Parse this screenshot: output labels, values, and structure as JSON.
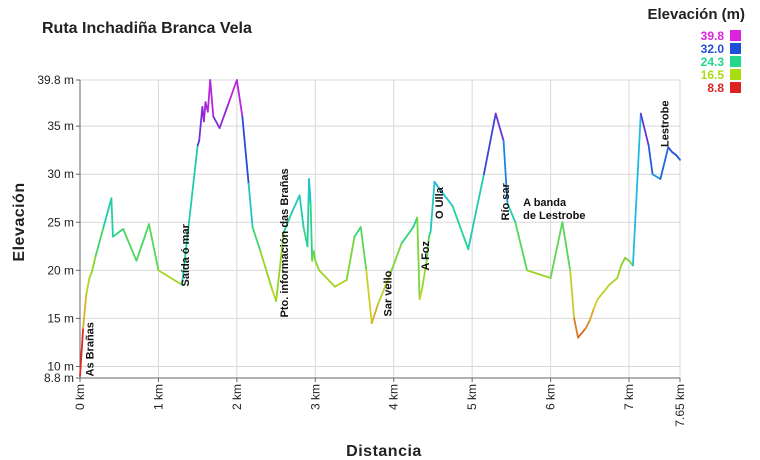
{
  "chart_data": {
    "type": "line",
    "title": "Ruta Inchadiña Branca Vela",
    "xlabel": "Distancia",
    "ylabel": "Elevación",
    "xlim": [
      0,
      7.65
    ],
    "ylim": [
      8.8,
      39.8
    ],
    "x_ticks": [
      {
        "value": 0,
        "label": "0 km"
      },
      {
        "value": 1,
        "label": "1 km"
      },
      {
        "value": 2,
        "label": "2 km"
      },
      {
        "value": 3,
        "label": "3 km"
      },
      {
        "value": 4,
        "label": "4 km"
      },
      {
        "value": 5,
        "label": "5 km"
      },
      {
        "value": 6,
        "label": "6 km"
      },
      {
        "value": 7,
        "label": "7 km"
      },
      {
        "value": 7.65,
        "label": "7.65 km"
      }
    ],
    "y_ticks": [
      {
        "value": 8.8,
        "label": "8.8 m"
      },
      {
        "value": 10,
        "label": "10 m"
      },
      {
        "value": 15,
        "label": "15 m"
      },
      {
        "value": 20,
        "label": "20 m"
      },
      {
        "value": 25,
        "label": "25 m"
      },
      {
        "value": 30,
        "label": "30 m"
      },
      {
        "value": 35,
        "label": "35 m"
      },
      {
        "value": 39.8,
        "label": "39.8 m"
      }
    ],
    "grid": true,
    "legend": {
      "title": "Elevación (m)",
      "placement": "top-right",
      "entries": [
        {
          "label": "39.8",
          "color": "#dd22dd"
        },
        {
          "label": "32.0",
          "color": "#1f4fd6"
        },
        {
          "label": "24.3",
          "color": "#22d68a"
        },
        {
          "label": "16.5",
          "color": "#aadd11"
        },
        {
          "label": "8.8",
          "color": "#dd2222"
        }
      ]
    },
    "series": [
      {
        "x": [
          0,
          0.04,
          0.08,
          0.12,
          0.15,
          0.2,
          0.3,
          0.4,
          0.42,
          0.55,
          0.72,
          0.88,
          1.0,
          1.3,
          1.5,
          1.52,
          1.56,
          1.58,
          1.6,
          1.63,
          1.66,
          1.7,
          1.78,
          1.9,
          2.0,
          2.07,
          2.15,
          2.2,
          2.3,
          2.45,
          2.5,
          2.6,
          2.7,
          2.8,
          2.85,
          2.9,
          2.92,
          2.94,
          2.96,
          2.98,
          3.0,
          3.05,
          3.25,
          3.4,
          3.5,
          3.58,
          3.65,
          3.72,
          3.8,
          3.95,
          4.1,
          4.25,
          4.3,
          4.33,
          4.36,
          4.42,
          4.45,
          4.47,
          4.52,
          4.6,
          4.75,
          4.95,
          5.15,
          5.3,
          5.4,
          5.45,
          5.55,
          5.7,
          6.0,
          6.15,
          6.25,
          6.3,
          6.35,
          6.45,
          6.5,
          6.55,
          6.6,
          6.75,
          6.85,
          6.9,
          6.95,
          7.0,
          7.05,
          7.15,
          7.25,
          7.3,
          7.4,
          7.5,
          7.55,
          7.6,
          7.62,
          7.65
        ],
        "y": [
          9.0,
          14.0,
          17.5,
          19.2,
          19.8,
          21.5,
          24.5,
          27.5,
          23.5,
          24.3,
          21.0,
          24.8,
          20.0,
          18.5,
          33.0,
          33.5,
          37.0,
          35.5,
          37.5,
          36.5,
          39.8,
          36.0,
          34.8,
          37.5,
          39.8,
          36.0,
          29.0,
          24.5,
          22.0,
          18.0,
          16.8,
          24.0,
          26.0,
          27.8,
          24.5,
          22.5,
          29.5,
          27.0,
          21.0,
          22.0,
          21.0,
          20.0,
          18.3,
          19.0,
          23.5,
          24.5,
          20.0,
          14.5,
          16.5,
          19.5,
          22.8,
          24.5,
          25.5,
          17.0,
          18.0,
          21.0,
          23.5,
          24.0,
          29.2,
          28.3,
          26.7,
          22.2,
          30.0,
          36.3,
          33.5,
          27.0,
          25.0,
          20.0,
          19.2,
          25.0,
          20.0,
          15.0,
          13.0,
          14.0,
          14.8,
          16.0,
          17.0,
          18.5,
          19.2,
          20.5,
          21.3,
          21.0,
          20.5,
          36.3,
          33.0,
          30.0,
          29.5,
          32.8,
          32.3,
          32.0,
          31.8,
          31.5
        ]
      }
    ],
    "annotations": [
      {
        "x": 0.12,
        "label": "As Brañas"
      },
      {
        "x": 1.34,
        "label": "Saída ó mar"
      },
      {
        "x": 2.6,
        "label": "Pto. información das Brañas"
      },
      {
        "x": 3.92,
        "label": "Sar vello"
      },
      {
        "x": 4.4,
        "label": "A Foz"
      },
      {
        "x": 4.58,
        "label": "O Ulla"
      },
      {
        "x": 5.42,
        "label": "Río sar"
      },
      {
        "x": 5.65,
        "label": "A banda\nde Lestrobe"
      },
      {
        "x": 7.45,
        "label": "Lestrobe"
      }
    ]
  }
}
